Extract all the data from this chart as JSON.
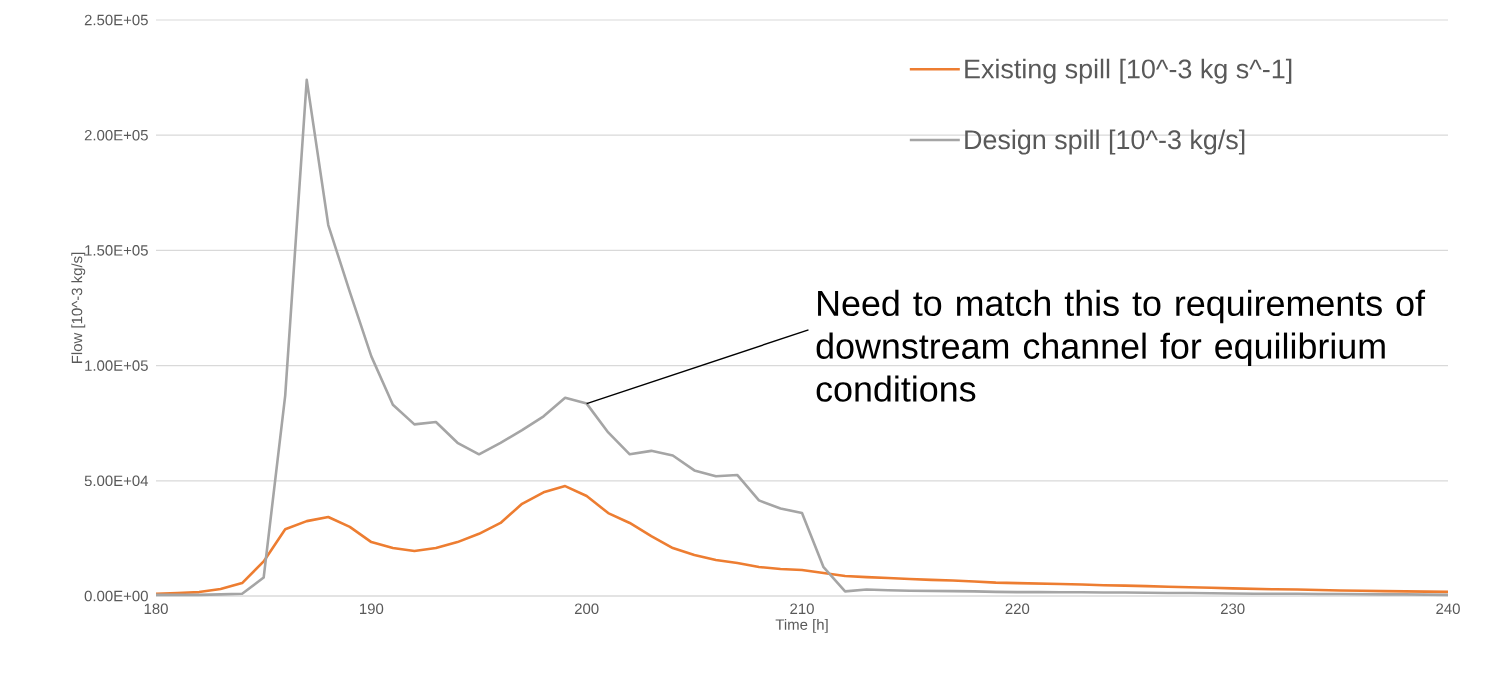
{
  "chart_data": {
    "type": "line",
    "xlabel": "Time [h]",
    "ylabel": "Flow [10^-3 kg/s]",
    "x": [
      180,
      181,
      182,
      183,
      184,
      185,
      186,
      187,
      188,
      189,
      190,
      191,
      192,
      193,
      194,
      195,
      196,
      197,
      198,
      199,
      200,
      201,
      202,
      203,
      204,
      205,
      206,
      207,
      208,
      209,
      210,
      211,
      212,
      213,
      214,
      215,
      216,
      217,
      218,
      219,
      220,
      221,
      222,
      223,
      224,
      225,
      226,
      227,
      228,
      229,
      230,
      231,
      232,
      233,
      234,
      235,
      236,
      237,
      238,
      239,
      240
    ],
    "series": [
      {
        "name": "Existing spill [10^-3 kg s^-1]",
        "color": "#ed7d31",
        "values": [
          1000,
          1300,
          1700,
          3000,
          5600,
          15000,
          29000,
          32500,
          34300,
          30000,
          23400,
          20800,
          19500,
          20800,
          23400,
          27000,
          31700,
          40000,
          45000,
          47700,
          43400,
          36000,
          31700,
          26000,
          20800,
          17800,
          15600,
          14300,
          12600,
          11700,
          11300,
          10000,
          8700,
          8200,
          7800,
          7400,
          7000,
          6700,
          6300,
          5800,
          5600,
          5400,
          5200,
          5000,
          4700,
          4500,
          4300,
          4000,
          3800,
          3600,
          3300,
          3100,
          2900,
          2800,
          2600,
          2400,
          2300,
          2100,
          2000,
          1900,
          1800
        ]
      },
      {
        "name": "Design spill [10^-3 kg/s]",
        "color": "#a5a5a5",
        "values": [
          500,
          500,
          500,
          700,
          1000,
          8000,
          87000,
          224000,
          161000,
          132000,
          104000,
          83000,
          74500,
          75500,
          66500,
          61500,
          66500,
          72000,
          78000,
          86000,
          83500,
          71000,
          61500,
          63000,
          61000,
          54500,
          52000,
          52500,
          41500,
          38000,
          36000,
          12500,
          2000,
          2800,
          2500,
          2300,
          2200,
          2100,
          2000,
          1800,
          1700,
          1700,
          1600,
          1600,
          1500,
          1500,
          1400,
          1300,
          1300,
          1200,
          1100,
          1000,
          1000,
          1000,
          900,
          900,
          800,
          700,
          700,
          600,
          500
        ]
      }
    ],
    "xlim": [
      180,
      240
    ],
    "ylim": [
      0,
      250000
    ],
    "xticks": [
      180,
      190,
      200,
      210,
      220,
      230,
      240
    ],
    "yticks": [
      {
        "value": 0,
        "label": "0.00E+00"
      },
      {
        "value": 50000,
        "label": "5.00E+04"
      },
      {
        "value": 100000,
        "label": "1.00E+05"
      },
      {
        "value": 150000,
        "label": "1.50E+05"
      },
      {
        "value": 200000,
        "label": "2.00E+05"
      },
      {
        "value": 250000,
        "label": "2.50E+05"
      }
    ],
    "grid": "y",
    "legend": "top right",
    "annotations": [
      {
        "text": "Need to match this to requirements of downstream channel for equilibrium conditions",
        "x": 200,
        "y": 83500
      }
    ]
  }
}
